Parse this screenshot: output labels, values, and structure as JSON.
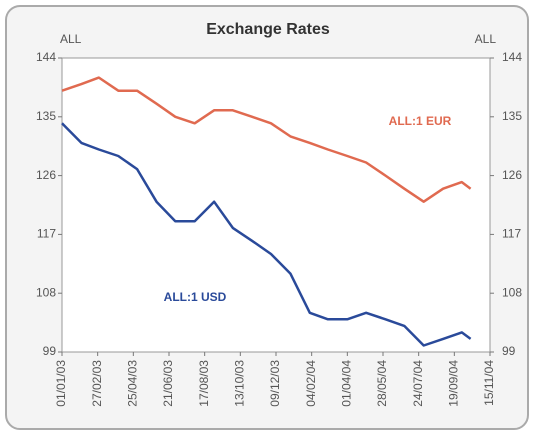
{
  "chart_data": {
    "type": "line",
    "title": "Exchange Rates",
    "ylabel": "ALL",
    "y2label": "ALL",
    "x": [
      "2003-01-01",
      "2003-02-01",
      "2003-03-01",
      "2003-04-01",
      "2003-05-01",
      "2003-06-01",
      "2003-07-01",
      "2003-08-01",
      "2003-09-01",
      "2003-10-01",
      "2003-11-01",
      "2003-12-01",
      "2004-01-01",
      "2004-02-01",
      "2004-03-01",
      "2004-04-01",
      "2004-05-01",
      "2004-06-01",
      "2004-07-01",
      "2004-08-01",
      "2004-09-01",
      "2004-10-01",
      "2004-10-15"
    ],
    "series": [
      {
        "name": "ALL:1 EUR",
        "color": "#e06a50",
        "values": [
          139,
          140,
          141,
          139,
          139,
          137,
          135,
          134,
          136,
          136,
          135,
          134,
          132,
          131,
          130,
          129,
          128,
          126,
          124,
          122,
          124,
          125,
          124
        ]
      },
      {
        "name": "ALL:1 USD",
        "color": "#2a4a9a",
        "values": [
          134,
          131,
          130,
          129,
          127,
          122,
          119,
          119,
          122,
          118,
          116,
          114,
          111,
          105,
          104,
          104,
          105,
          104,
          103,
          100,
          101,
          102,
          101
        ]
      }
    ],
    "xlim": [
      "2003-01-01",
      "2004-11-15"
    ],
    "xticks": [
      {
        "value": "2003-01-01",
        "label": "01/01/03"
      },
      {
        "value": "2003-02-27",
        "label": "27/02/03"
      },
      {
        "value": "2003-04-25",
        "label": "25/04/03"
      },
      {
        "value": "2003-06-21",
        "label": "21/06/03"
      },
      {
        "value": "2003-08-17",
        "label": "17/08/03"
      },
      {
        "value": "2003-10-13",
        "label": "13/10/03"
      },
      {
        "value": "2003-12-09",
        "label": "09/12/03"
      },
      {
        "value": "2004-02-04",
        "label": "04/02/04"
      },
      {
        "value": "2004-04-01",
        "label": "01/04/04"
      },
      {
        "value": "2004-05-28",
        "label": "28/05/04"
      },
      {
        "value": "2004-07-24",
        "label": "24/07/04"
      },
      {
        "value": "2004-09-19",
        "label": "19/09/04"
      },
      {
        "value": "2004-11-15",
        "label": "15/11/04"
      }
    ],
    "ylim": [
      99,
      144
    ],
    "yticks": [
      99,
      108,
      117,
      126,
      135,
      144
    ],
    "y2lim": [
      99,
      144
    ],
    "y2ticks": [
      99,
      108,
      117,
      126,
      135,
      144
    ]
  }
}
